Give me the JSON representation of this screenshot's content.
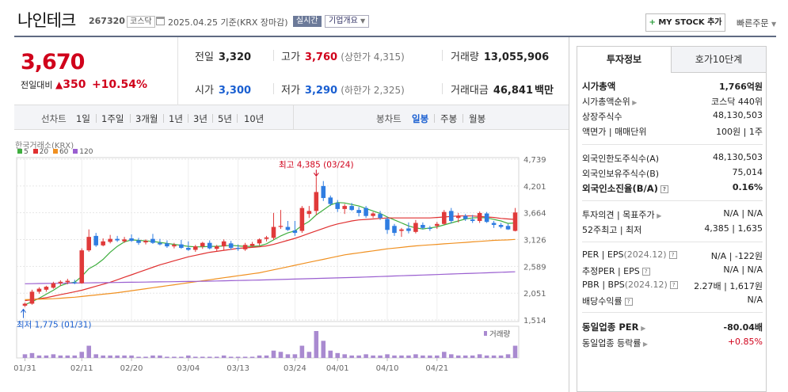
{
  "header": {
    "company_name": "나인테크",
    "code": "267320",
    "market_tag": "코스닥",
    "date_text": "2025.04.25  기준(KRX 장마감)",
    "realtime_badge": "실시간",
    "overview_dropdown": "기업개요",
    "my_stock_button": "MY STOCK 추가",
    "quick_order": "빠른주문"
  },
  "price": {
    "current": "3,670",
    "change_label": "전일대비",
    "change_amount": "350",
    "change_pct": "+10.54%",
    "stats": {
      "prev_label": "전일",
      "prev": "3,320",
      "high_label": "고가",
      "high": "3,760",
      "upper_limit": "(상한가 4,315)",
      "volume_label": "거래량",
      "volume": "13,055,906",
      "open_label": "시가",
      "open": "3,300",
      "low_label": "저가",
      "low": "3,290",
      "lower_limit": "(하한가 2,325)",
      "amount_label": "거래대금",
      "amount": "46,841",
      "amount_unit": "백만"
    }
  },
  "period_tabs": {
    "line_chart_label": "선차트",
    "items": [
      "1일",
      "1주일",
      "3개월",
      "1년",
      "3년",
      "5년",
      "10년"
    ],
    "candle_label": "봉차트",
    "candle_items": [
      "일봉",
      "주봉",
      "월봉"
    ],
    "active_candle": "일봉"
  },
  "chart_meta": {
    "source": "한국거래소(KRX)",
    "ma": [
      {
        "label": "5",
        "color": "#3fae3f"
      },
      {
        "label": "20",
        "color": "#e03030"
      },
      {
        "label": "60",
        "color": "#f09020"
      },
      {
        "label": "120",
        "color": "#9a5fd0"
      }
    ],
    "max_label": "최고 4,385 (03/24)",
    "min_label": "최저 1,775 (01/31)",
    "volume_label": "거래량",
    "colors": {
      "up": "#e03a3a",
      "down": "#2f7de1"
    }
  },
  "chart_data": {
    "type": "candlestick",
    "y_ticks": [
      "4,739",
      "4,201",
      "3,664",
      "3,126",
      "2,589",
      "2,051",
      "1,514"
    ],
    "ylim": [
      1514,
      4739
    ],
    "x_ticks": [
      "01/31",
      "02/11",
      "02/20",
      "03/04",
      "03/13",
      "03/24",
      "04/01",
      "04/10",
      "04/21"
    ],
    "candles": [
      {
        "o": 1800,
        "h": 1860,
        "l": 1775,
        "c": 1840
      },
      {
        "o": 1840,
        "h": 2120,
        "l": 1820,
        "c": 2080
      },
      {
        "o": 2080,
        "h": 2170,
        "l": 2040,
        "c": 2140
      },
      {
        "o": 2120,
        "h": 2200,
        "l": 2080,
        "c": 2180
      },
      {
        "o": 2160,
        "h": 2280,
        "l": 2140,
        "c": 2250
      },
      {
        "o": 2250,
        "h": 2310,
        "l": 2200,
        "c": 2280
      },
      {
        "o": 2270,
        "h": 2340,
        "l": 2230,
        "c": 2300
      },
      {
        "o": 2270,
        "h": 2320,
        "l": 2230,
        "c": 2250
      },
      {
        "o": 2250,
        "h": 2950,
        "l": 2240,
        "c": 2910
      },
      {
        "o": 2910,
        "h": 3330,
        "l": 2880,
        "c": 3180
      },
      {
        "o": 3200,
        "h": 3260,
        "l": 2980,
        "c": 3010
      },
      {
        "o": 3010,
        "h": 3150,
        "l": 2990,
        "c": 3090
      },
      {
        "o": 3080,
        "h": 3220,
        "l": 3050,
        "c": 3140
      },
      {
        "o": 3140,
        "h": 3200,
        "l": 3080,
        "c": 3110
      },
      {
        "o": 3090,
        "h": 3180,
        "l": 3060,
        "c": 3130
      },
      {
        "o": 3150,
        "h": 3230,
        "l": 3080,
        "c": 3100
      },
      {
        "o": 3110,
        "h": 3160,
        "l": 3020,
        "c": 3060
      },
      {
        "o": 3070,
        "h": 3130,
        "l": 3030,
        "c": 3100
      },
      {
        "o": 3140,
        "h": 3240,
        "l": 3040,
        "c": 3060
      },
      {
        "o": 3060,
        "h": 3140,
        "l": 3010,
        "c": 3030
      },
      {
        "o": 3050,
        "h": 3110,
        "l": 2960,
        "c": 2990
      },
      {
        "o": 2990,
        "h": 3060,
        "l": 2950,
        "c": 3020
      },
      {
        "o": 3030,
        "h": 3120,
        "l": 2940,
        "c": 2960
      },
      {
        "o": 2960,
        "h": 3090,
        "l": 2900,
        "c": 2920
      },
      {
        "o": 2920,
        "h": 3020,
        "l": 2880,
        "c": 2990
      },
      {
        "o": 2990,
        "h": 3080,
        "l": 2940,
        "c": 3060
      },
      {
        "o": 3060,
        "h": 3110,
        "l": 2930,
        "c": 2950
      },
      {
        "o": 2940,
        "h": 3020,
        "l": 2890,
        "c": 2990
      },
      {
        "o": 2990,
        "h": 3130,
        "l": 2920,
        "c": 3090
      },
      {
        "o": 3050,
        "h": 3100,
        "l": 2920,
        "c": 2960
      },
      {
        "o": 2960,
        "h": 3030,
        "l": 2900,
        "c": 2940
      },
      {
        "o": 2930,
        "h": 3060,
        "l": 2900,
        "c": 3020
      },
      {
        "o": 3000,
        "h": 3080,
        "l": 2960,
        "c": 3040
      },
      {
        "o": 3050,
        "h": 3150,
        "l": 3010,
        "c": 3130
      },
      {
        "o": 3140,
        "h": 3200,
        "l": 3090,
        "c": 3170
      },
      {
        "o": 3160,
        "h": 3660,
        "l": 3120,
        "c": 3380
      },
      {
        "o": 3380,
        "h": 3720,
        "l": 3340,
        "c": 3400
      },
      {
        "o": 3380,
        "h": 3500,
        "l": 3300,
        "c": 3320
      },
      {
        "o": 3310,
        "h": 3500,
        "l": 3200,
        "c": 3260
      },
      {
        "o": 3300,
        "h": 3800,
        "l": 3260,
        "c": 3760
      },
      {
        "o": 3640,
        "h": 3800,
        "l": 3560,
        "c": 3700
      },
      {
        "o": 3700,
        "h": 4385,
        "l": 3620,
        "c": 4080
      },
      {
        "o": 4200,
        "h": 4300,
        "l": 3900,
        "c": 3960
      },
      {
        "o": 3970,
        "h": 4010,
        "l": 3800,
        "c": 3840
      },
      {
        "o": 3860,
        "h": 3920,
        "l": 3680,
        "c": 3740
      },
      {
        "o": 3740,
        "h": 3840,
        "l": 3640,
        "c": 3800
      },
      {
        "o": 3800,
        "h": 3860,
        "l": 3700,
        "c": 3720
      },
      {
        "o": 3720,
        "h": 3780,
        "l": 3590,
        "c": 3660
      },
      {
        "o": 3760,
        "h": 3800,
        "l": 3560,
        "c": 3600
      },
      {
        "o": 3600,
        "h": 3680,
        "l": 3560,
        "c": 3650
      },
      {
        "o": 3640,
        "h": 3700,
        "l": 3520,
        "c": 3560
      },
      {
        "o": 3540,
        "h": 3580,
        "l": 3240,
        "c": 3320
      },
      {
        "o": 3400,
        "h": 3440,
        "l": 3200,
        "c": 3260
      },
      {
        "o": 3300,
        "h": 3360,
        "l": 3180,
        "c": 3330
      },
      {
        "o": 3350,
        "h": 3470,
        "l": 3250,
        "c": 3300
      },
      {
        "o": 3280,
        "h": 3520,
        "l": 3250,
        "c": 3460
      },
      {
        "o": 3420,
        "h": 3470,
        "l": 3330,
        "c": 3360
      },
      {
        "o": 3360,
        "h": 3400,
        "l": 3300,
        "c": 3340
      },
      {
        "o": 3400,
        "h": 3480,
        "l": 3340,
        "c": 3440
      },
      {
        "o": 3440,
        "h": 3720,
        "l": 3420,
        "c": 3680
      },
      {
        "o": 3700,
        "h": 3760,
        "l": 3450,
        "c": 3500
      },
      {
        "o": 3560,
        "h": 3660,
        "l": 3470,
        "c": 3600
      },
      {
        "o": 3600,
        "h": 3640,
        "l": 3500,
        "c": 3540
      },
      {
        "o": 3530,
        "h": 3620,
        "l": 3460,
        "c": 3500
      },
      {
        "o": 3500,
        "h": 3690,
        "l": 3460,
        "c": 3660
      },
      {
        "o": 3650,
        "h": 3680,
        "l": 3460,
        "c": 3480
      },
      {
        "o": 3460,
        "h": 3500,
        "l": 3360,
        "c": 3420
      },
      {
        "o": 3420,
        "h": 3460,
        "l": 3350,
        "c": 3380
      },
      {
        "o": 3400,
        "h": 3440,
        "l": 3320,
        "c": 3330
      },
      {
        "o": 3300,
        "h": 3760,
        "l": 3290,
        "c": 3670
      }
    ],
    "volumes": [
      3,
      4,
      2,
      2,
      3,
      2,
      2,
      2,
      5,
      10,
      3,
      2,
      2,
      2,
      2,
      2,
      1,
      1,
      2,
      2,
      1,
      1,
      1,
      2,
      1,
      1,
      1,
      1,
      2,
      1,
      1,
      1,
      1,
      2,
      2,
      6,
      5,
      3,
      3,
      10,
      5,
      22,
      14,
      6,
      4,
      3,
      2,
      2,
      3,
      2,
      2,
      3,
      2,
      2,
      2,
      3,
      2,
      2,
      2,
      5,
      3,
      2,
      2,
      2,
      3,
      2,
      2,
      2,
      3,
      10
    ],
    "ma_series": {
      "5": [
        1820,
        1880,
        1950,
        2030,
        2110,
        2200,
        2250,
        2270,
        2390,
        2540,
        2620,
        2730,
        2870,
        2990,
        3080,
        3120,
        3110,
        3100,
        3090,
        3070,
        3050,
        3030,
        3010,
        2990,
        2980,
        2980,
        2990,
        2990,
        3000,
        3010,
        3000,
        2990,
        2990,
        3000,
        3040,
        3120,
        3200,
        3260,
        3300,
        3410,
        3490,
        3620,
        3720,
        3820,
        3870,
        3860,
        3830,
        3800,
        3750,
        3700,
        3650,
        3580,
        3520,
        3460,
        3400,
        3360,
        3340,
        3360,
        3380,
        3420,
        3460,
        3500,
        3540,
        3560,
        3570,
        3560,
        3530,
        3500,
        3450,
        3460
      ],
      "20": [
        1900,
        1920,
        1940,
        1960,
        1990,
        2020,
        2050,
        2080,
        2110,
        2150,
        2190,
        2230,
        2270,
        2320,
        2370,
        2420,
        2470,
        2520,
        2570,
        2620,
        2660,
        2700,
        2740,
        2780,
        2810,
        2840,
        2870,
        2890,
        2910,
        2930,
        2950,
        2960,
        2970,
        2980,
        3000,
        3030,
        3070,
        3110,
        3150,
        3200,
        3250,
        3300,
        3350,
        3400,
        3440,
        3470,
        3500,
        3520,
        3530,
        3540,
        3550,
        3560,
        3560,
        3560,
        3560,
        3560,
        3560,
        3560,
        3570,
        3580,
        3590,
        3600,
        3600,
        3600,
        3590,
        3580,
        3570,
        3550,
        3540,
        3530
      ],
      "60": [
        1920,
        1925,
        1930,
        1935,
        1940,
        1950,
        1960,
        1970,
        1985,
        2000,
        2015,
        2030,
        2045,
        2060,
        2080,
        2100,
        2120,
        2140,
        2160,
        2180,
        2200,
        2220,
        2240,
        2260,
        2280,
        2300,
        2320,
        2340,
        2360,
        2380,
        2400,
        2420,
        2440,
        2460,
        2490,
        2520,
        2550,
        2580,
        2610,
        2640,
        2670,
        2700,
        2730,
        2760,
        2790,
        2820,
        2840,
        2860,
        2880,
        2900,
        2920,
        2940,
        2955,
        2970,
        2985,
        3000,
        3010,
        3020,
        3030,
        3040,
        3050,
        3060,
        3070,
        3080,
        3090,
        3100,
        3110,
        3115,
        3120,
        3130
      ],
      "120": [
        2240,
        2242,
        2244,
        2246,
        2248,
        2250,
        2252,
        2254,
        2256,
        2258,
        2260,
        2262,
        2264,
        2266,
        2268,
        2270,
        2272,
        2274,
        2276,
        2278,
        2280,
        2282,
        2284,
        2286,
        2288,
        2290,
        2293,
        2296,
        2299,
        2302,
        2305,
        2308,
        2311,
        2314,
        2318,
        2322,
        2326,
        2330,
        2334,
        2338,
        2342,
        2346,
        2350,
        2354,
        2358,
        2362,
        2366,
        2370,
        2375,
        2380,
        2385,
        2390,
        2395,
        2400,
        2405,
        2410,
        2415,
        2420,
        2425,
        2430,
        2435,
        2440,
        2445,
        2450,
        2455,
        2460,
        2465,
        2470,
        2475,
        2480
      ]
    }
  },
  "right_panel": {
    "tabs": [
      "투자정보",
      "호가10단계"
    ],
    "rows": [
      {
        "k": "시가총액",
        "v": "1,766억원",
        "kb": true,
        "vb": true
      },
      {
        "k": "시가총액순위",
        "v": "코스닥 440위",
        "car": true
      },
      {
        "k": "상장주식수",
        "v": "48,130,503"
      },
      {
        "k": "액면가 | 매매단위",
        "v": "100원 | 1주"
      },
      {
        "k": "외국인한도주식수(A)",
        "v": "48,130,503"
      },
      {
        "k": "외국인보유주식수(B)",
        "v": "75,014"
      },
      {
        "k": "외국인소진율(B/A)",
        "v": "0.16%",
        "kb": true,
        "vb": true,
        "info": true
      },
      {
        "k": "투자의견 | 목표주가",
        "v": "N/A | N/A",
        "car": true
      },
      {
        "k": "52주최고 | 최저",
        "v": "4,385 | 1,635"
      },
      {
        "k": "PER | EPS",
        "ksub": "(2024.12)",
        "v": "N/A | -122원",
        "info": true
      },
      {
        "k": "추정PER | EPS",
        "v": "N/A | N/A",
        "info": true
      },
      {
        "k": "PBR | BPS",
        "ksub": "(2024.12)",
        "v": "2.27배 | 1,617원",
        "info": true
      },
      {
        "k": "배당수익률",
        "v": "N/A",
        "info": true
      },
      {
        "k": "동일업종 PER",
        "v": "-80.04배",
        "kb": true,
        "vb": true,
        "car": true
      },
      {
        "k": "동일업종 등락률",
        "v": "+0.85%",
        "car": true,
        "vred": true
      }
    ]
  }
}
